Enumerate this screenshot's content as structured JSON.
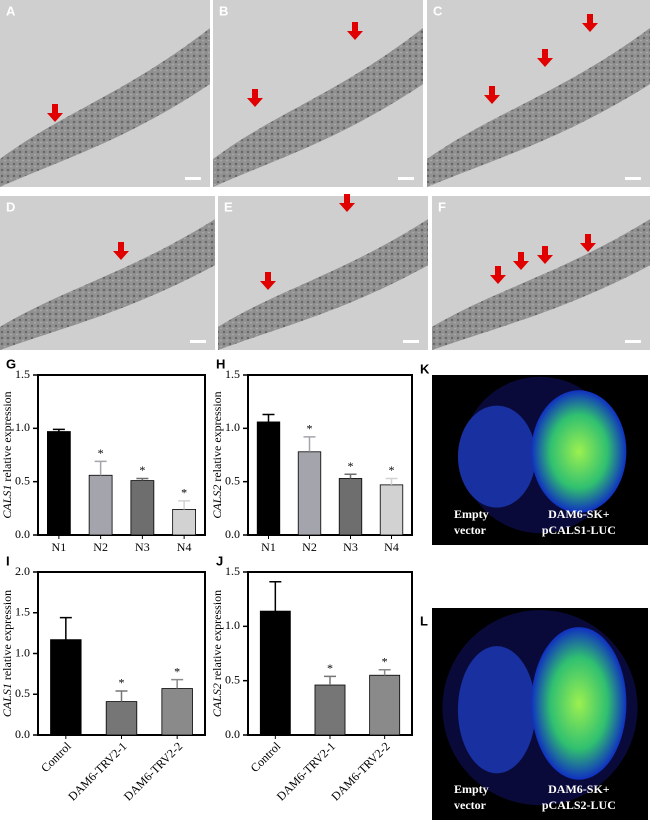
{
  "panels": {
    "micrographs": [
      {
        "label": "A"
      },
      {
        "label": "B"
      },
      {
        "label": "C"
      },
      {
        "label": "D"
      },
      {
        "label": "E"
      },
      {
        "label": "F"
      }
    ],
    "luciferase": [
      {
        "label": "K",
        "left_label": [
          "Empty",
          "vector"
        ],
        "right_label": [
          "DAM6-SK+",
          "pCALS1-LUC"
        ]
      },
      {
        "label": "L",
        "left_label": [
          "Empty",
          "vector"
        ],
        "right_label": [
          "DAM6-SK+",
          "pCALS2-LUC"
        ]
      }
    ]
  },
  "chart_data": [
    {
      "type": "bar",
      "panel": "G",
      "ylabel_gene": "CALS1",
      "ylabel": "relative expression",
      "categories": [
        "N1",
        "N2",
        "N3",
        "N4"
      ],
      "values": [
        0.97,
        0.56,
        0.51,
        0.24
      ],
      "errors": [
        0.02,
        0.13,
        0.02,
        0.08
      ],
      "significance": [
        null,
        "*",
        "*",
        "*"
      ],
      "colors": [
        "#000000",
        "#a4a4ac",
        "#6e6e6e",
        "#d2d2d2"
      ],
      "ylim": [
        0,
        1.5
      ],
      "yticks": [
        {
          "value": 0,
          "label": "0.0"
        },
        0.5,
        {
          "value": 1,
          "label": "1.0"
        },
        1.5
      ]
    },
    {
      "type": "bar",
      "panel": "H",
      "ylabel_gene": "CALS2",
      "ylabel": "relative expression",
      "categories": [
        "N1",
        "N2",
        "N3",
        "N4"
      ],
      "values": [
        1.06,
        0.78,
        0.53,
        0.47
      ],
      "errors": [
        0.07,
        0.14,
        0.04,
        0.06
      ],
      "significance": [
        null,
        "*",
        "*",
        "*"
      ],
      "colors": [
        "#000000",
        "#a4a4ac",
        "#6e6e6e",
        "#d2d2d2"
      ],
      "ylim": [
        0,
        1.5
      ],
      "yticks": [
        {
          "value": 0,
          "label": "0.0"
        },
        0.5,
        {
          "value": 1,
          "label": "1.0"
        },
        1.5
      ]
    },
    {
      "type": "bar",
      "panel": "I",
      "ylabel_gene": "CALS1",
      "ylabel": "relative expression",
      "categories": [
        "Control",
        "DAM6-TRV2-1",
        "DAM6-TRV2-2"
      ],
      "values": [
        1.17,
        0.41,
        0.57
      ],
      "errors": [
        0.27,
        0.13,
        0.11
      ],
      "significance": [
        null,
        "*",
        "*"
      ],
      "colors": [
        "#000000",
        "#767676",
        "#8a8a8a"
      ],
      "ylim": [
        0,
        2
      ],
      "yticks": [
        {
          "value": 0,
          "label": "0.0"
        },
        0.5,
        {
          "value": 1,
          "label": "1.0"
        },
        1.5,
        {
          "value": 2,
          "label": "2.0"
        }
      ]
    },
    {
      "type": "bar",
      "panel": "J",
      "ylabel_gene": "CALS2",
      "ylabel": "relative expression",
      "categories": [
        "Control",
        "DAM6-TRV2-1",
        "DAM6-TRV2-2"
      ],
      "values": [
        1.14,
        0.46,
        0.55
      ],
      "errors": [
        0.27,
        0.08,
        0.05
      ],
      "significance": [
        null,
        "*",
        "*"
      ],
      "colors": [
        "#000000",
        "#767676",
        "#8a8a8a"
      ],
      "ylim": [
        0,
        1.5
      ],
      "yticks": [
        {
          "value": 0,
          "label": "0.0"
        },
        0.5,
        {
          "value": 1,
          "label": "1.0"
        },
        1.5
      ]
    }
  ]
}
